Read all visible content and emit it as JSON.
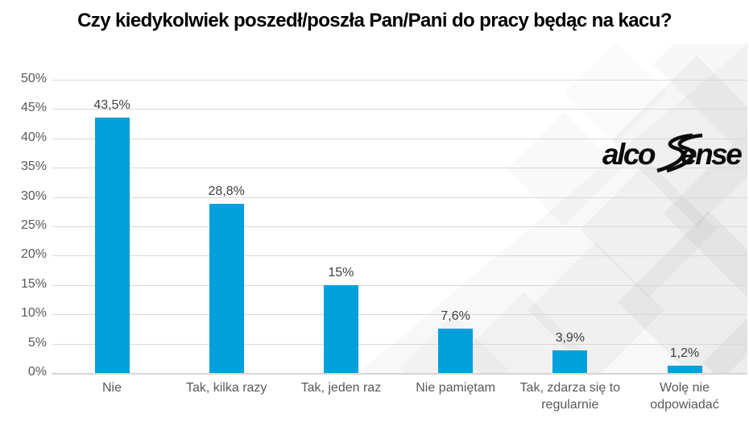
{
  "title": "Czy kiedykolwiek poszedł/poszła Pan/Pani do pracy będąc na kacu?",
  "logo": {
    "name": "alcosense",
    "text_left": "alco",
    "text_right": "ense"
  },
  "chart_data": {
    "type": "bar",
    "title": "Czy kiedykolwiek poszedł/poszła Pan/Pani do pracy będąc na kacu?",
    "categories": [
      "Nie",
      "Tak, kilka razy",
      "Tak, jeden raz",
      "Nie pamiętam",
      "Tak, zdarza się to regularnie",
      "Wolę nie odpowiadać"
    ],
    "values": [
      43.5,
      28.8,
      15,
      7.6,
      3.9,
      1.2
    ],
    "value_labels": [
      "43,5%",
      "28,8%",
      "15%",
      "7,6%",
      "3,9%",
      "1,2%"
    ],
    "xlabel": "",
    "ylabel": "",
    "ylim": [
      0,
      50
    ],
    "ytick_step": 5,
    "ytick_labels": [
      "0%",
      "5%",
      "10%",
      "15%",
      "20%",
      "25%",
      "30%",
      "35%",
      "40%",
      "45%",
      "50%"
    ],
    "grid": true,
    "legend": "none",
    "bar_color": "#00A0DC",
    "value_label_color": "#404040",
    "axis_text_color": "#595959",
    "gridline_color": "#D9D9D9"
  }
}
